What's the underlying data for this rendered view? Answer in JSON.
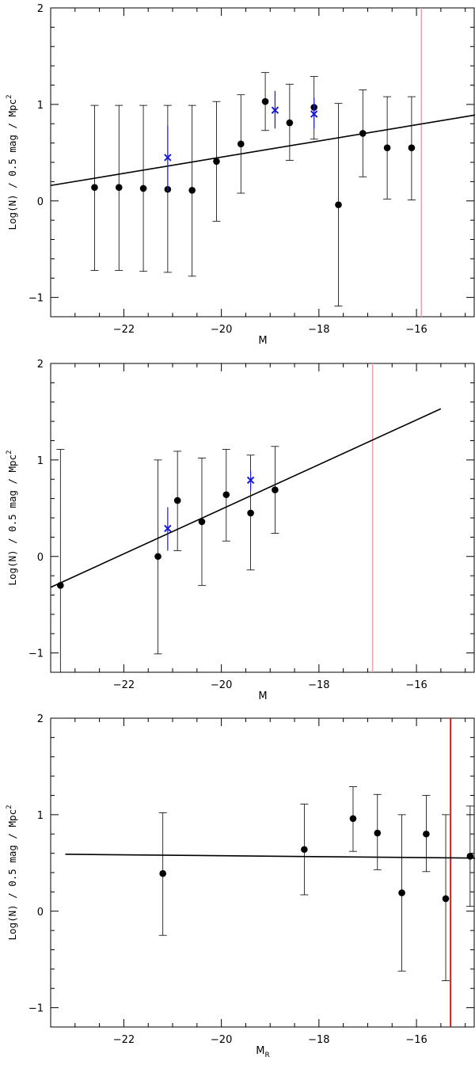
{
  "chart_data": [
    {
      "type": "scatter",
      "ylabel": "Log(N) / 0.5 mag / Mpc",
      "ylabel_sup": "2",
      "xlabel": "M",
      "xlabel_sub": "",
      "xlim": [
        -23.5,
        -14.8
      ],
      "ylim": [
        -1.2,
        2
      ],
      "x_ticks": [
        -22,
        -20,
        -18,
        -16
      ],
      "y_ticks": [
        -1,
        0,
        1,
        2
      ],
      "series": [
        {
          "marker": "circle",
          "color": "#000000",
          "points": [
            {
              "x": -22.6,
              "y": 0.14,
              "lo": -0.72,
              "hi": 0.99
            },
            {
              "x": -22.1,
              "y": 0.14,
              "lo": -0.72,
              "hi": 0.99
            },
            {
              "x": -21.6,
              "y": 0.13,
              "lo": -0.73,
              "hi": 0.99
            },
            {
              "x": -21.1,
              "y": 0.12,
              "lo": -0.74,
              "hi": 0.99
            },
            {
              "x": -20.6,
              "y": 0.11,
              "lo": -0.78,
              "hi": 0.99
            },
            {
              "x": -20.1,
              "y": 0.41,
              "lo": -0.21,
              "hi": 1.03
            },
            {
              "x": -19.6,
              "y": 0.59,
              "lo": 0.08,
              "hi": 1.1
            },
            {
              "x": -19.1,
              "y": 1.03,
              "lo": 0.73,
              "hi": 1.33
            },
            {
              "x": -18.6,
              "y": 0.81,
              "lo": 0.42,
              "hi": 1.21
            },
            {
              "x": -18.1,
              "y": 0.97,
              "lo": 0.64,
              "hi": 1.29
            },
            {
              "x": -17.6,
              "y": -0.04,
              "lo": -1.09,
              "hi": 1.01
            },
            {
              "x": -17.1,
              "y": 0.7,
              "lo": 0.25,
              "hi": 1.15
            },
            {
              "x": -16.6,
              "y": 0.55,
              "lo": 0.02,
              "hi": 1.08
            },
            {
              "x": -16.1,
              "y": 0.55,
              "lo": 0.01,
              "hi": 1.08
            }
          ]
        },
        {
          "marker": "cross",
          "color": "#1a1ad6",
          "points": [
            {
              "x": -21.1,
              "y": 0.45,
              "lo": 0.1,
              "hi": 0.78
            },
            {
              "x": -18.9,
              "y": 0.94,
              "lo": 0.75,
              "hi": 1.14
            },
            {
              "x": -18.1,
              "y": 0.9,
              "lo": 0.75,
              "hi": 1.07
            }
          ]
        }
      ],
      "fit_line": {
        "x": [
          -23.5,
          -14.8
        ],
        "y": [
          0.16,
          0.89
        ],
        "color": "#000000"
      },
      "vline": {
        "x": -15.9,
        "color": "#f4a0a8"
      }
    },
    {
      "type": "scatter",
      "ylabel": "Log(N) / 0.5 mag / Mpc",
      "ylabel_sup": "2",
      "xlabel": "M",
      "xlabel_sub": "",
      "xlim": [
        -23.5,
        -14.8
      ],
      "ylim": [
        -1.2,
        2
      ],
      "x_ticks": [
        -22,
        -20,
        -18,
        -16
      ],
      "y_ticks": [
        -1,
        0,
        1,
        2
      ],
      "series": [
        {
          "marker": "circle",
          "color": "#000000",
          "points": [
            {
              "x": -23.3,
              "y": -0.3,
              "lo": -1.2,
              "hi": 1.11
            },
            {
              "x": -21.3,
              "y": 0.0,
              "lo": -1.01,
              "hi": 1.0
            },
            {
              "x": -20.9,
              "y": 0.58,
              "lo": 0.06,
              "hi": 1.09
            },
            {
              "x": -20.4,
              "y": 0.36,
              "lo": -0.3,
              "hi": 1.02
            },
            {
              "x": -19.9,
              "y": 0.64,
              "lo": 0.16,
              "hi": 1.11
            },
            {
              "x": -19.4,
              "y": 0.45,
              "lo": -0.14,
              "hi": 1.05
            },
            {
              "x": -18.9,
              "y": 0.69,
              "lo": 0.24,
              "hi": 1.14
            }
          ]
        },
        {
          "marker": "cross",
          "color": "#1a1ad6",
          "points": [
            {
              "x": -21.1,
              "y": 0.29,
              "lo": 0.06,
              "hi": 0.51
            },
            {
              "x": -19.4,
              "y": 0.79,
              "lo": 0.68,
              "hi": 0.89
            }
          ]
        }
      ],
      "fit_line": {
        "x": [
          -23.5,
          -15.5
        ],
        "y": [
          -0.32,
          1.53
        ],
        "color": "#000000"
      },
      "vline": {
        "x": -16.9,
        "color": "#f4a0a8"
      }
    },
    {
      "type": "scatter",
      "ylabel": "Log(N) / 0.5 mag / Mpc",
      "ylabel_sup": "2",
      "xlabel": "M",
      "xlabel_sub": "R",
      "xlim": [
        -23.5,
        -14.8
      ],
      "ylim": [
        -1.2,
        2
      ],
      "x_ticks": [
        -22,
        -20,
        -18,
        -16
      ],
      "y_ticks": [
        -1,
        0,
        1,
        2
      ],
      "series": [
        {
          "marker": "circle",
          "color": "#000000",
          "points": [
            {
              "x": -21.2,
              "y": 0.39,
              "lo": -0.25,
              "hi": 1.02
            },
            {
              "x": -18.3,
              "y": 0.64,
              "lo": 0.17,
              "hi": 1.11
            },
            {
              "x": -17.3,
              "y": 0.96,
              "lo": 0.62,
              "hi": 1.29
            },
            {
              "x": -16.8,
              "y": 0.81,
              "lo": 0.43,
              "hi": 1.21
            },
            {
              "x": -16.3,
              "y": 0.19,
              "lo": -0.62,
              "hi": 1.0
            },
            {
              "x": -15.8,
              "y": 0.8,
              "lo": 0.41,
              "hi": 1.2
            },
            {
              "x": -15.4,
              "y": 0.13,
              "lo": -0.72,
              "hi": 1.0
            },
            {
              "x": -14.9,
              "y": 0.57,
              "lo": 0.05,
              "hi": 1.09
            }
          ]
        }
      ],
      "fit_line": {
        "x": [
          -23.2,
          -14.8
        ],
        "y": [
          0.59,
          0.55
        ],
        "color": "#000000"
      },
      "vline": {
        "x": -15.3,
        "color": "#c41e1e"
      }
    }
  ]
}
